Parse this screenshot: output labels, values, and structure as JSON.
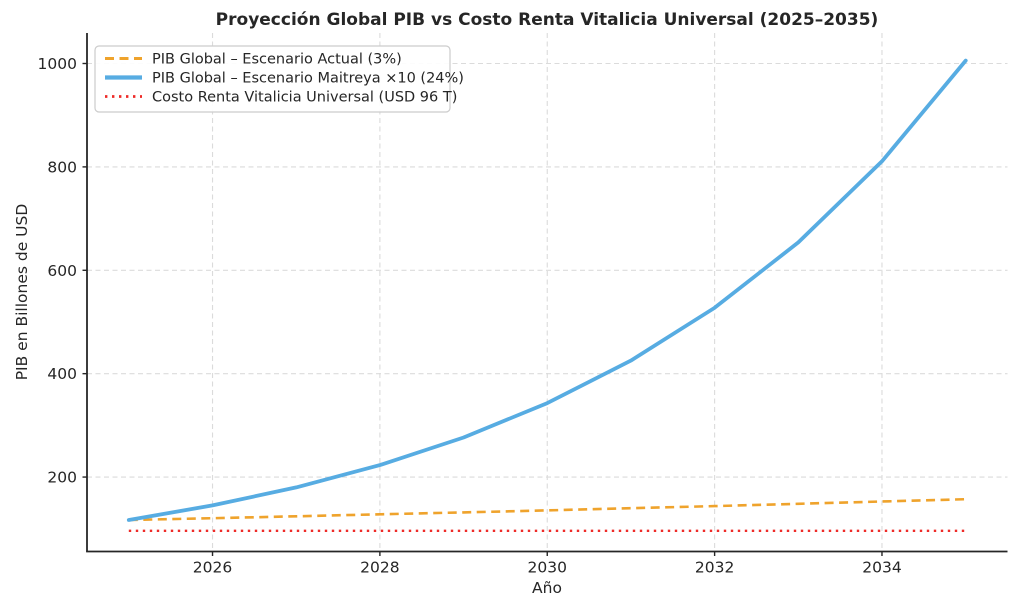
{
  "figure": {
    "title": "Proyección Global PIB vs Costo Renta Vitalicia Universal (2025–2035)",
    "xlabel": "Año",
    "ylabel": "PIB en Billones de USD"
  },
  "chart_data": {
    "type": "line",
    "title": "Proyección Global PIB vs Costo Renta Vitalicia Universal (2025–2035)",
    "xlabel": "Año",
    "ylabel": "PIB en Billones de USD",
    "x": [
      2025,
      2026,
      2027,
      2028,
      2029,
      2030,
      2031,
      2032,
      2033,
      2034,
      2035
    ],
    "series": [
      {
        "name": "PIB Global – Escenario Actual (3%)",
        "color": "#EFA32C",
        "style": "dashed",
        "width": 2.6,
        "values": [
          117.0,
          120.5,
          124.1,
          127.9,
          131.7,
          135.6,
          139.7,
          143.9,
          148.2,
          152.7,
          157.2
        ]
      },
      {
        "name": "PIB Global – Escenario Maitreya ×10 (24%)",
        "color": "#57ACE2",
        "style": "solid",
        "width": 3.8,
        "values": [
          117.0,
          145.1,
          179.9,
          223.1,
          276.6,
          343.0,
          425.3,
          527.4,
          654.0,
          810.9,
          1005.6
        ]
      },
      {
        "name": "Costo Renta Vitalicia Universal (USD 96 T)",
        "color": "#EE2B28",
        "style": "dotted",
        "width": 2.4,
        "values": [
          96,
          96,
          96,
          96,
          96,
          96,
          96,
          96,
          96,
          96,
          96
        ]
      }
    ],
    "xticks": [
      2026,
      2028,
      2030,
      2032,
      2034
    ],
    "yticks": [
      200,
      400,
      600,
      800,
      1000
    ],
    "xlim": [
      2024.5,
      2035.5
    ],
    "ylim": [
      56,
      1059
    ],
    "grid": true,
    "grid_style": "dashed",
    "legend_position": "upper left"
  },
  "style": {
    "grid_color": "#DBDBDB",
    "spine_color": "#262626",
    "text_color": "#262626",
    "legend_border_color": "#CCCCCC",
    "legend_bg_color": "#FFFFFF",
    "background_color": "#FFFFFF"
  }
}
